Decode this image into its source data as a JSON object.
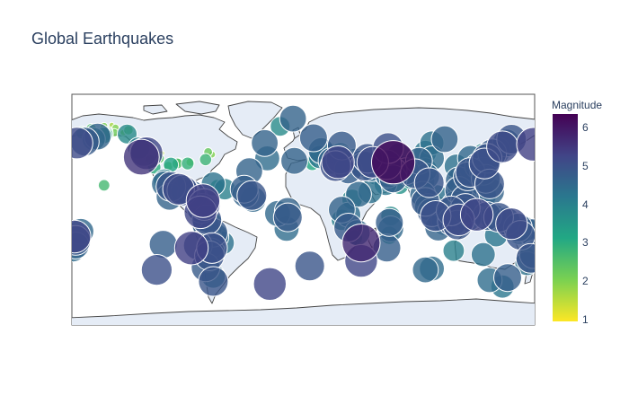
{
  "title": "Global Earthquakes",
  "colorbar": {
    "title": "Magnitude",
    "ticks": [
      "1",
      "2",
      "3",
      "4",
      "5",
      "6"
    ],
    "min": 1,
    "max": 6.3,
    "colors": [
      "#fde725",
      "#7ad151",
      "#22a884",
      "#2a788e",
      "#414487",
      "#440154"
    ]
  },
  "chart_data": {
    "type": "scatter",
    "projection": "equirectangular",
    "marker_opacity": 0.8,
    "points": [
      {
        "lat": 61,
        "lon": -152,
        "mag": 2.5
      },
      {
        "lat": 62,
        "lon": -149,
        "mag": 1.8
      },
      {
        "lat": 60,
        "lon": -147,
        "mag": 2.2
      },
      {
        "lat": 63,
        "lon": -150,
        "mag": 1.5
      },
      {
        "lat": 59,
        "lon": -153,
        "mag": 3.0
      },
      {
        "lat": 64,
        "lon": -146,
        "mag": 2.0
      },
      {
        "lat": 58,
        "lon": -155,
        "mag": 3.4
      },
      {
        "lat": 61,
        "lon": -141,
        "mag": 1.6
      },
      {
        "lat": 57,
        "lon": -160,
        "mag": 4.6
      },
      {
        "lat": 55,
        "lon": -163,
        "mag": 4.2
      },
      {
        "lat": 53,
        "lon": -170,
        "mag": 4.8
      },
      {
        "lat": 52,
        "lon": -176,
        "mag": 5.1
      },
      {
        "lat": 51,
        "lon": 179,
        "mag": 5.3
      },
      {
        "lat": 62,
        "lon": -136,
        "mag": 2.4
      },
      {
        "lat": 60,
        "lon": -140,
        "mag": 1.9
      },
      {
        "lat": 65,
        "lon": -155,
        "mag": 2.1
      },
      {
        "lat": 63,
        "lon": -165,
        "mag": 2.6
      },
      {
        "lat": 59,
        "lon": -137,
        "mag": 3.8
      },
      {
        "lat": 66,
        "lon": -149,
        "mag": 1.7
      },
      {
        "lat": 60,
        "lon": -172,
        "mag": 2.9
      },
      {
        "lat": 45,
        "lon": -124,
        "mag": 4.8
      },
      {
        "lat": 44,
        "lon": -122,
        "mag": 5.2
      },
      {
        "lat": 41,
        "lon": -126,
        "mag": 5.5
      },
      {
        "lat": 48,
        "lon": -128,
        "mag": 4.1
      },
      {
        "lat": 40,
        "lon": -121,
        "mag": 1.3
      },
      {
        "lat": 38,
        "lon": -122,
        "mag": 1.2
      },
      {
        "lat": 37,
        "lon": -118,
        "mag": 1.5
      },
      {
        "lat": 36,
        "lon": -117,
        "mag": 1.8
      },
      {
        "lat": 35,
        "lon": -116,
        "mag": 2.1
      },
      {
        "lat": 34,
        "lon": -117,
        "mag": 1.4
      },
      {
        "lat": 39,
        "lon": -119,
        "mag": 2.4
      },
      {
        "lat": 33,
        "lon": -116,
        "mag": 1.1
      },
      {
        "lat": 40,
        "lon": -112,
        "mag": 2.5
      },
      {
        "lat": 38,
        "lon": -112,
        "mag": 1.9
      },
      {
        "lat": 44,
        "lon": -110,
        "mag": 1.6
      },
      {
        "lat": 36,
        "lon": -98,
        "mag": 2.6
      },
      {
        "lat": 37,
        "lon": -97,
        "mag": 2.3
      },
      {
        "lat": 33,
        "lon": -116,
        "mag": 3.0
      },
      {
        "lat": 34,
        "lon": -105,
        "mag": 2.4
      },
      {
        "lat": 35,
        "lon": -103,
        "mag": 3.2
      },
      {
        "lat": 36,
        "lon": -90,
        "mag": 2.9
      },
      {
        "lat": 37,
        "lon": -88,
        "mag": 2.2
      },
      {
        "lat": 45,
        "lon": -74,
        "mag": 2.3
      },
      {
        "lat": 43,
        "lon": -71,
        "mag": 2.0
      },
      {
        "lat": 39,
        "lon": -76,
        "mag": 2.8
      },
      {
        "lat": 19,
        "lon": -155,
        "mag": 2.7
      },
      {
        "lat": 18,
        "lon": -103,
        "mag": 4.9
      },
      {
        "lat": 16,
        "lon": -97,
        "mag": 5.1
      },
      {
        "lat": 14,
        "lon": -92,
        "mag": 4.8
      },
      {
        "lat": 12,
        "lon": -87,
        "mag": 4.7
      },
      {
        "lat": 10,
        "lon": -85,
        "mag": 4.6
      },
      {
        "lat": 15,
        "lon": -94,
        "mag": 5.0
      },
      {
        "lat": 20,
        "lon": -108,
        "mag": 4.5
      },
      {
        "lat": 23,
        "lon": -108,
        "mag": 4.1
      },
      {
        "lat": 9,
        "lon": -83,
        "mag": 4.3
      },
      {
        "lat": 7,
        "lon": -78,
        "mag": 5.3
      },
      {
        "lat": 4,
        "lon": -77,
        "mag": 5.1
      },
      {
        "lat": 1,
        "lon": -79,
        "mag": 4.9
      },
      {
        "lat": 18,
        "lon": -67,
        "mag": 3.1
      },
      {
        "lat": 19,
        "lon": -64,
        "mag": 2.6
      },
      {
        "lat": 16,
        "lon": -61,
        "mag": 4.0
      },
      {
        "lat": 20,
        "lon": -70,
        "mag": 4.3
      },
      {
        "lat": 20,
        "lon": -95,
        "mag": 3.6
      },
      {
        "lat": -2,
        "lon": -80,
        "mag": 5.2
      },
      {
        "lat": -5,
        "lon": -78,
        "mag": 4.5
      },
      {
        "lat": -8,
        "lon": -75,
        "mag": 4.9
      },
      {
        "lat": -12,
        "lon": -76,
        "mag": 4.6
      },
      {
        "lat": -15,
        "lon": -73,
        "mag": 4.4
      },
      {
        "lat": -18,
        "lon": -70,
        "mag": 4.8
      },
      {
        "lat": -21,
        "lon": -68,
        "mag": 4.5
      },
      {
        "lat": -24,
        "lon": -67,
        "mag": 4.2
      },
      {
        "lat": -27,
        "lon": -71,
        "mag": 4.6
      },
      {
        "lat": -30,
        "lon": -71,
        "mag": 5.0
      },
      {
        "lat": -33,
        "lon": -72,
        "mag": 4.7
      },
      {
        "lat": -36,
        "lon": -73,
        "mag": 4.9
      },
      {
        "lat": -26,
        "lon": -63,
        "mag": 4.3
      },
      {
        "lat": -22,
        "lon": -66,
        "mag": 4.0
      },
      {
        "lat": -10,
        "lon": -71,
        "mag": 3.9
      },
      {
        "lat": -39,
        "lon": -74,
        "mag": 4.4
      },
      {
        "lat": -27,
        "lon": -109,
        "mag": 4.7
      },
      {
        "lat": -28,
        "lon": -82,
        "mag": 4.8
      },
      {
        "lat": -30,
        "lon": -87,
        "mag": 5.3
      },
      {
        "lat": -47,
        "lon": -114,
        "mag": 5.0
      },
      {
        "lat": -58,
        "lon": -26,
        "mag": 5.2
      },
      {
        "lat": -3,
        "lon": -20,
        "mag": 4.5
      },
      {
        "lat": 8,
        "lon": -39,
        "mag": 4.5
      },
      {
        "lat": 16,
        "lon": -46,
        "mag": 4.7
      },
      {
        "lat": 30,
        "lon": -42,
        "mag": 4.6
      },
      {
        "lat": 40,
        "lon": -28,
        "mag": 4.4
      },
      {
        "lat": 52,
        "lon": -30,
        "mag": 4.6
      },
      {
        "lat": 12,
        "lon": -45,
        "mag": 4.6
      },
      {
        "lat": 65,
        "lon": -18,
        "mag": 3.8
      },
      {
        "lat": 71,
        "lon": -8,
        "mag": 4.6
      },
      {
        "lat": -45,
        "lon": -76,
        "mag": 4.8
      },
      {
        "lat": -52,
        "lon": -70,
        "mag": 4.3
      },
      {
        "lat": -56,
        "lon": -70,
        "mag": 4.9
      },
      {
        "lat": -15,
        "lon": -13,
        "mag": 4.4
      },
      {
        "lat": -1,
        "lon": -12,
        "mag": 4.6
      },
      {
        "lat": -6,
        "lon": -12,
        "mag": 4.8
      },
      {
        "lat": 10,
        "lon": -104,
        "mag": 4.6
      },
      {
        "lat": 11,
        "lon": -40,
        "mag": 4.9
      },
      {
        "lat": 38,
        "lon": 22,
        "mag": 4.6
      },
      {
        "lat": 37,
        "lon": 27,
        "mag": 5.2
      },
      {
        "lat": 39,
        "lon": 29,
        "mag": 4.8
      },
      {
        "lat": 38,
        "lon": 40,
        "mag": 4.4
      },
      {
        "lat": 36,
        "lon": 45,
        "mag": 4.6
      },
      {
        "lat": 34,
        "lon": 48,
        "mag": 4.9
      },
      {
        "lat": 32,
        "lon": 53,
        "mag": 4.5
      },
      {
        "lat": 28,
        "lon": 57,
        "mag": 4.2
      },
      {
        "lat": 37,
        "lon": 54,
        "mag": 5.1
      },
      {
        "lat": 37,
        "lon": 70,
        "mag": 6.2
      },
      {
        "lat": 35,
        "lon": 65,
        "mag": 4.9
      },
      {
        "lat": 33,
        "lon": 75,
        "mag": 4.4
      },
      {
        "lat": 30,
        "lon": 70,
        "mag": 4.7
      },
      {
        "lat": 42,
        "lon": 75,
        "mag": 4.5
      },
      {
        "lat": 30,
        "lon": 80,
        "mag": 4.6
      },
      {
        "lat": 28,
        "lon": 87,
        "mag": 4.9
      },
      {
        "lat": 31,
        "lon": 95,
        "mag": 4.3
      },
      {
        "lat": 26,
        "lon": 96,
        "mag": 4.5
      },
      {
        "lat": 38,
        "lon": 90,
        "mag": 4.6
      },
      {
        "lat": 40,
        "lon": 100,
        "mag": 4.4
      },
      {
        "lat": 45,
        "lon": 22,
        "mag": 3.6
      },
      {
        "lat": 41,
        "lon": 13,
        "mag": 4.2
      },
      {
        "lat": 43,
        "lon": 13,
        "mag": 3.8
      },
      {
        "lat": 56,
        "lon": 8,
        "mag": 4.7
      },
      {
        "lat": 50,
        "lon": 30,
        "mag": 4.8
      },
      {
        "lat": 46,
        "lon": 14,
        "mag": 4.5
      },
      {
        "lat": 48,
        "lon": 66,
        "mag": 5.0
      },
      {
        "lat": 38,
        "lon": -7,
        "mag": 4.6
      },
      {
        "lat": 36,
        "lon": 7,
        "mag": 3.1
      },
      {
        "lat": 44,
        "lon": 29,
        "mag": 4.0
      },
      {
        "lat": 36,
        "lon": 33,
        "mag": 4.3
      },
      {
        "lat": 34,
        "lon": 25,
        "mag": 5.0
      },
      {
        "lat": 31,
        "lon": 35,
        "mag": 4.7
      },
      {
        "lat": 38,
        "lon": 15,
        "mag": 3.2
      },
      {
        "lat": 22,
        "lon": 94,
        "mag": 4.0
      },
      {
        "lat": 24,
        "lon": 84,
        "mag": 3.9
      },
      {
        "lat": 27,
        "lon": 66,
        "mag": 4.5
      },
      {
        "lat": 55,
        "lon": 110,
        "mag": 4.6
      },
      {
        "lat": 52,
        "lon": 100,
        "mag": 4.3
      },
      {
        "lat": 45,
        "lon": 95,
        "mag": 4.2
      },
      {
        "lat": 12,
        "lon": 43,
        "mag": 4.5
      },
      {
        "lat": 14,
        "lon": 52,
        "mag": 4.3
      },
      {
        "lat": 0,
        "lon": 30,
        "mag": 4.6
      },
      {
        "lat": -8,
        "lon": 30,
        "mag": 4.0
      },
      {
        "lat": -14,
        "lon": 35,
        "mag": 4.8
      },
      {
        "lat": -22,
        "lon": 40,
        "mag": 3.3
      },
      {
        "lat": -4,
        "lon": 35,
        "mag": 4.4
      },
      {
        "lat": 8,
        "lon": 38,
        "mag": 3.9
      },
      {
        "lat": -26,
        "lon": 45,
        "mag": 5.7
      },
      {
        "lat": -30,
        "lon": 65,
        "mag": 4.7
      },
      {
        "lat": -40,
        "lon": 45,
        "mag": 5.2
      },
      {
        "lat": -44,
        "lon": 5,
        "mag": 4.9
      },
      {
        "lat": -15,
        "lon": 68,
        "mag": 4.5
      },
      {
        "lat": -10,
        "lon": 67,
        "mag": 4.7
      },
      {
        "lat": -5,
        "lon": 68,
        "mag": 3.8
      },
      {
        "lat": -20,
        "lon": 67,
        "mag": 3.6
      },
      {
        "lat": 40,
        "lon": 50,
        "mag": 4.9
      },
      {
        "lat": 24,
        "lon": 70,
        "mag": 4.7
      },
      {
        "lat": 19,
        "lon": 75,
        "mag": 3.6
      },
      {
        "lat": 20,
        "lon": 64,
        "mag": 4.2
      },
      {
        "lat": 2,
        "lon": 97,
        "mag": 4.6
      },
      {
        "lat": -2,
        "lon": 100,
        "mag": 4.8
      },
      {
        "lat": -5,
        "lon": 103,
        "mag": 5.0
      },
      {
        "lat": -8,
        "lon": 110,
        "mag": 4.6
      },
      {
        "lat": -9,
        "lon": 116,
        "mag": 4.9
      },
      {
        "lat": -8,
        "lon": 121,
        "mag": 5.1
      },
      {
        "lat": -6,
        "lon": 128,
        "mag": 4.7
      },
      {
        "lat": -3,
        "lon": 130,
        "mag": 4.4
      },
      {
        "lat": 1,
        "lon": 126,
        "mag": 4.9
      },
      {
        "lat": 5,
        "lon": 126,
        "mag": 4.6
      },
      {
        "lat": 8,
        "lon": 126,
        "mag": 4.8
      },
      {
        "lat": 12,
        "lon": 125,
        "mag": 4.5
      },
      {
        "lat": 15,
        "lon": 121,
        "mag": 4.7
      },
      {
        "lat": 18,
        "lon": 121,
        "mag": 4.3
      },
      {
        "lat": 23,
        "lon": 121,
        "mag": 4.6
      },
      {
        "lat": 24,
        "lon": 122,
        "mag": 4.2
      },
      {
        "lat": 26,
        "lon": 128,
        "mag": 4.8
      },
      {
        "lat": 29,
        "lon": 130,
        "mag": 4.9
      },
      {
        "lat": 32,
        "lon": 131,
        "mag": 4.4
      },
      {
        "lat": 34,
        "lon": 136,
        "mag": 4.6
      },
      {
        "lat": 36,
        "lon": 141,
        "mag": 5.0
      },
      {
        "lat": 38,
        "lon": 142,
        "mag": 4.7
      },
      {
        "lat": 40,
        "lon": 143,
        "mag": 4.9
      },
      {
        "lat": 42,
        "lon": 144,
        "mag": 4.5
      },
      {
        "lat": 44,
        "lon": 147,
        "mag": 4.8
      },
      {
        "lat": 46,
        "lon": 151,
        "mag": 4.6
      },
      {
        "lat": 49,
        "lon": 155,
        "mag": 5.1
      },
      {
        "lat": 52,
        "lon": 158,
        "mag": 4.7
      },
      {
        "lat": 55,
        "lon": 162,
        "mag": 4.9
      },
      {
        "lat": 51,
        "lon": 156,
        "mag": 4.3
      },
      {
        "lat": 44,
        "lon": 140,
        "mag": 3.9
      },
      {
        "lat": 40,
        "lon": 130,
        "mag": 4.5
      },
      {
        "lat": 30,
        "lon": 140,
        "mag": 4.7
      },
      {
        "lat": 24,
        "lon": 142,
        "mag": 4.8
      },
      {
        "lat": 20,
        "lon": 145,
        "mag": 4.9
      },
      {
        "lat": 14,
        "lon": 146,
        "mag": 4.6
      },
      {
        "lat": 11,
        "lon": 141,
        "mag": 4.3
      },
      {
        "lat": -1,
        "lon": 124,
        "mag": 4.7
      },
      {
        "lat": -4,
        "lon": 135,
        "mag": 5.2
      },
      {
        "lat": -5,
        "lon": 143,
        "mag": 4.8
      },
      {
        "lat": -6,
        "lon": 148,
        "mag": 4.6
      },
      {
        "lat": -6,
        "lon": 152,
        "mag": 4.9
      },
      {
        "lat": -9,
        "lon": 158,
        "mag": 4.7
      },
      {
        "lat": -11,
        "lon": 162,
        "mag": 5.1
      },
      {
        "lat": -14,
        "lon": 167,
        "mag": 4.8
      },
      {
        "lat": -17,
        "lon": 168,
        "mag": 4.5
      },
      {
        "lat": -20,
        "lon": 169,
        "mag": 4.9
      },
      {
        "lat": -15,
        "lon": 173,
        "mag": 4.3
      },
      {
        "lat": -18,
        "lon": 178,
        "mag": 4.7
      },
      {
        "lat": -21,
        "lon": -178,
        "mag": 5.2
      },
      {
        "lat": -24,
        "lon": -177,
        "mag": 4.9
      },
      {
        "lat": -17,
        "lon": -173,
        "mag": 4.5
      },
      {
        "lat": -28,
        "lon": -177,
        "mag": 4.6
      },
      {
        "lat": -31,
        "lon": -179,
        "mag": 4.4
      },
      {
        "lat": -35,
        "lon": 179,
        "mag": 4.7
      },
      {
        "lat": -38,
        "lon": 177,
        "mag": 4.9
      },
      {
        "lat": -42,
        "lon": 174,
        "mag": 4.3
      },
      {
        "lat": -20,
        "lon": 150,
        "mag": 4.2
      },
      {
        "lat": -32,
        "lon": 117,
        "mag": 4.0
      },
      {
        "lat": -35,
        "lon": 140,
        "mag": 4.3
      },
      {
        "lat": -12,
        "lon": 120,
        "mag": 4.9
      },
      {
        "lat": -10,
        "lon": 110,
        "mag": 4.5
      },
      {
        "lat": -14,
        "lon": 105,
        "mag": 4.6
      },
      {
        "lat": 6,
        "lon": 95,
        "mag": 4.8
      },
      {
        "lat": 12,
        "lon": 93,
        "mag": 4.5
      },
      {
        "lat": 14,
        "lon": 95,
        "mag": 3.8
      },
      {
        "lat": 10,
        "lon": 104,
        "mag": 4.3
      },
      {
        "lat": -1,
        "lon": 115,
        "mag": 4.9
      },
      {
        "lat": 4,
        "lon": 118,
        "mag": 4.6
      },
      {
        "lat": -3,
        "lon": 118,
        "mag": 3.7
      },
      {
        "lat": -6,
        "lon": 106,
        "mag": 4.4
      },
      {
        "lat": 21,
        "lon": 98,
        "mag": 4.9
      },
      {
        "lat": 21,
        "lon": 122,
        "mag": 3.8
      },
      {
        "lat": 24,
        "lon": 80,
        "mag": 3.5
      },
      {
        "lat": 36,
        "lon": 139,
        "mag": 3.6
      },
      {
        "lat": 44,
        "lon": 150,
        "mag": 3.9
      },
      {
        "lat": 34,
        "lon": 119,
        "mag": 4.3
      },
      {
        "lat": -35,
        "lon": 174,
        "mag": 3.2
      },
      {
        "lat": -47,
        "lon": 95,
        "mag": 4.5
      },
      {
        "lat": -46,
        "lon": 100,
        "mag": 4.4
      },
      {
        "lat": -55,
        "lon": 145,
        "mag": 4.4
      },
      {
        "lat": -53,
        "lon": 159,
        "mag": 4.7
      },
      {
        "lat": -60,
        "lon": 155,
        "mag": 4.2
      },
      {
        "lat": -18,
        "lon": 42,
        "mag": 4.5
      }
    ]
  }
}
